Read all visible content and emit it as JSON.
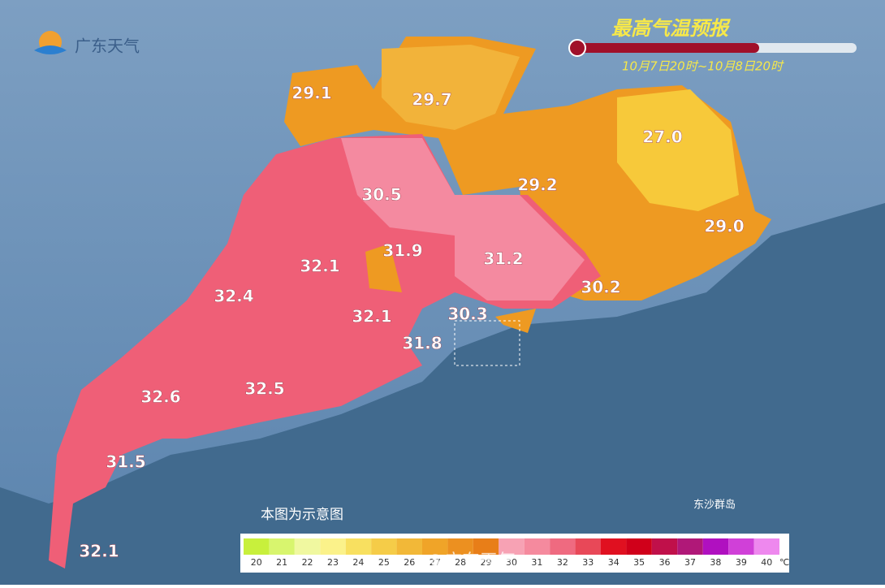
{
  "logo": "广东天气",
  "title": "最高气温预报",
  "subtitle": "10月7日20时~10月8日20时",
  "regions": [
    {
      "label": "29.1"
    },
    {
      "label": "29.7"
    },
    {
      "label": "27.0"
    },
    {
      "label": "30.5"
    },
    {
      "label": "29.2"
    },
    {
      "label": "29.0"
    },
    {
      "label": "32.1"
    },
    {
      "label": "31.9"
    },
    {
      "label": "31.2"
    },
    {
      "label": "32.4"
    },
    {
      "label": "30.2"
    },
    {
      "label": "32.1"
    },
    {
      "label": "30.3"
    },
    {
      "label": "31.8"
    },
    {
      "label": "32.6"
    },
    {
      "label": "32.5"
    },
    {
      "label": "31.5"
    },
    {
      "label": "32.1"
    }
  ],
  "note": "本图为示意图",
  "island": "东沙群岛",
  "watermark": "@广东天气",
  "legend": {
    "unit": "℃",
    "items": [
      {
        "label": "20",
        "color": "#c8f03c"
      },
      {
        "label": "21",
        "color": "#d8f56e"
      },
      {
        "label": "22",
        "color": "#f0f8a0"
      },
      {
        "label": "23",
        "color": "#fbf28a"
      },
      {
        "label": "24",
        "color": "#f8e060"
      },
      {
        "label": "25",
        "color": "#f5cc48"
      },
      {
        "label": "26",
        "color": "#f2b838"
      },
      {
        "label": "27",
        "color": "#f0a428"
      },
      {
        "label": "28",
        "color": "#ec9020"
      },
      {
        "label": "29",
        "color": "#e87e18"
      },
      {
        "label": "30",
        "color": "#f7a2b4"
      },
      {
        "label": "31",
        "color": "#f58a9e"
      },
      {
        "label": "32",
        "color": "#ef6a80"
      },
      {
        "label": "33",
        "color": "#e84858"
      },
      {
        "label": "34",
        "color": "#e01020"
      },
      {
        "label": "35",
        "color": "#d0001a"
      },
      {
        "label": "36",
        "color": "#c0104a"
      },
      {
        "label": "37",
        "color": "#b01878"
      },
      {
        "label": "38",
        "color": "#b010c0"
      },
      {
        "label": "39",
        "color": "#d040d8"
      },
      {
        "label": "40",
        "color": "#ee88ee"
      }
    ]
  }
}
